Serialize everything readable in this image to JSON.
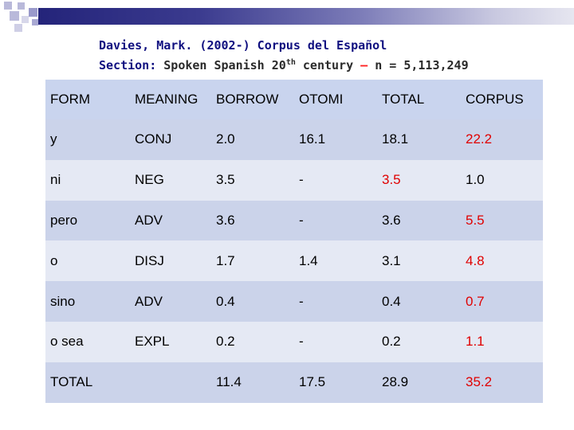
{
  "colors": {
    "header_row": "#c9d4ee",
    "row_odd": "#cbd3ea",
    "row_even": "#e5e9f4",
    "title_blue": "#101080",
    "accent_red": "#e00000"
  },
  "title": {
    "line1": "Davies, Mark. (2002-) Corpus del Español",
    "section_label": "Section:",
    "section_text_before_sup": "Spoken Spanish 20",
    "section_sup": "th",
    "section_text_after_sup": "century",
    "dash": "–",
    "count": "n = 5,113,249"
  },
  "table": {
    "headers": [
      "FORM",
      "MEANING",
      "BORROW",
      "OTOMI",
      "TOTAL",
      "CORPUS"
    ],
    "rows": [
      {
        "cells": [
          "y",
          "CONJ",
          "2.0",
          "16.1",
          "18.1",
          "22.2"
        ],
        "red": [
          false,
          false,
          false,
          false,
          false,
          true
        ]
      },
      {
        "cells": [
          "ni",
          "NEG",
          "3.5",
          "-",
          "3.5",
          "1.0"
        ],
        "red": [
          false,
          false,
          false,
          false,
          true,
          false
        ]
      },
      {
        "cells": [
          "pero",
          "ADV",
          "3.6",
          "-",
          "3.6",
          "5.5"
        ],
        "red": [
          false,
          false,
          false,
          false,
          false,
          true
        ]
      },
      {
        "cells": [
          "o",
          "DISJ",
          "1.7",
          "1.4",
          "3.1",
          "4.8"
        ],
        "red": [
          false,
          false,
          false,
          false,
          false,
          true
        ]
      },
      {
        "cells": [
          "sino",
          "ADV",
          "0.4",
          "-",
          "0.4",
          "0.7"
        ],
        "red": [
          false,
          false,
          false,
          false,
          false,
          true
        ]
      },
      {
        "cells": [
          "o sea",
          "EXPL",
          "0.2",
          "-",
          "0.2",
          "1.1"
        ],
        "red": [
          false,
          false,
          false,
          false,
          false,
          true
        ]
      },
      {
        "cells": [
          "TOTAL",
          "",
          "11.4",
          "17.5",
          "28.9",
          "35.2"
        ],
        "red": [
          false,
          false,
          false,
          false,
          false,
          true
        ]
      }
    ]
  }
}
